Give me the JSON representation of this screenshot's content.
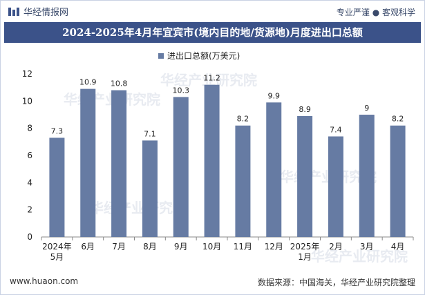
{
  "header": {
    "brand": "华经情报网",
    "tagline": "专业严谨 ● 客观科学"
  },
  "watermark": "华经产业研究院",
  "footer": {
    "site": "www.huaon.com",
    "source": "数据来源：中国海关，华经产业研究院整理"
  },
  "colors": {
    "bar": "#667ba3",
    "title_bg": "#3b5289"
  },
  "chart_data": {
    "type": "bar",
    "title": "2024-2025年4月年宜宾市(境内目的地/货源地)月度进出口总额",
    "legend": "进出口总额(万美元)",
    "categories": [
      [
        "2024年",
        "5月"
      ],
      [
        "6月"
      ],
      [
        "7月"
      ],
      [
        "8月"
      ],
      [
        "9月"
      ],
      [
        "10月"
      ],
      [
        "11月"
      ],
      [
        "12月"
      ],
      [
        "2025年",
        "1月"
      ],
      [
        "2月"
      ],
      [
        "3月"
      ],
      [
        "4月"
      ]
    ],
    "values": [
      7.3,
      10.9,
      10.8,
      7.1,
      10.3,
      11.2,
      8.2,
      9.9,
      8.9,
      7.4,
      9,
      8.2
    ],
    "value_labels": [
      "7.3",
      "10.9",
      "10.8",
      "7.1",
      "10.3",
      "11.2",
      "8.2",
      "9.9",
      "8.9",
      "7.4",
      "9",
      "8.2"
    ],
    "ylim": [
      0,
      12
    ],
    "yticks": [
      0,
      2,
      4,
      6,
      8,
      10,
      12
    ],
    "xlabel": "",
    "ylabel": "",
    "grid": false
  }
}
